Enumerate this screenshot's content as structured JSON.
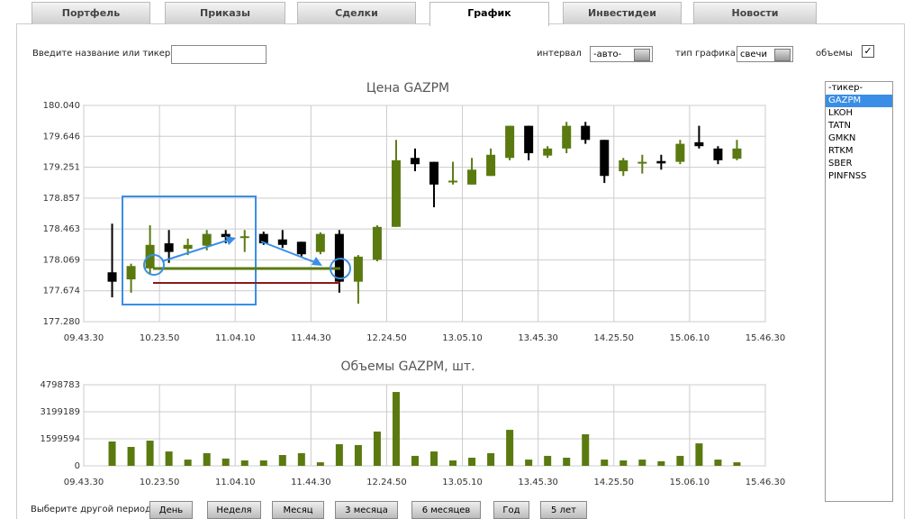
{
  "tabs": [
    "Портфель",
    "Приказы",
    "Сделки",
    "График",
    "Инвестидеи",
    "Новости"
  ],
  "active_tab": 3,
  "search": {
    "label": "Введите название или тикер"
  },
  "interval": {
    "label": "интервал",
    "value": "-авто-"
  },
  "chart_type": {
    "label": "тип графика",
    "value": "свечи"
  },
  "volumes": {
    "label": "объемы",
    "checked": true
  },
  "ticker_list": {
    "items": [
      "-тикер-",
      "GAZPM",
      "LKOH",
      "TATN",
      "GMKN",
      "RTKM",
      "SBER",
      "PINFNSS"
    ],
    "selected": 1
  },
  "price_chart": {
    "type": "candlestick",
    "title": "Цена GAZPM",
    "up_color": "#5a7a10",
    "down_color": "#000000",
    "xticks": [
      "09.43.30",
      "10.23.50",
      "11.04.10",
      "11.44.30",
      "12.24.50",
      "13.05.10",
      "13.45.30",
      "14.25.50",
      "15.06.10",
      "15.46.30"
    ],
    "ylim": [
      177.28,
      180.04
    ],
    "yticks": [
      {
        "value": 180.04,
        "label": "180.040"
      },
      179.646,
      179.251,
      178.857,
      178.463,
      178.069,
      177.674,
      {
        "value": 177.28,
        "label": "177.280"
      }
    ],
    "grid": true,
    "open": [
      177.91,
      177.82,
      177.96,
      178.28,
      178.21,
      178.25,
      178.4,
      178.36,
      178.4,
      178.33,
      178.3,
      178.17,
      178.4,
      177.79,
      178.07,
      178.49,
      179.37,
      179.32,
      179.06,
      179.03,
      179.14,
      179.37,
      179.78,
      179.4,
      179.49,
      179.78,
      179.6,
      179.2,
      179.31,
      179.33,
      179.32,
      179.57,
      179.49,
      179.36
    ],
    "high": [
      178.53,
      178.02,
      178.51,
      178.45,
      178.34,
      178.45,
      178.45,
      178.45,
      178.43,
      178.45,
      178.3,
      178.42,
      178.45,
      178.13,
      178.51,
      179.6,
      179.49,
      179.32,
      179.32,
      179.37,
      179.49,
      179.78,
      179.78,
      179.52,
      179.83,
      179.83,
      179.6,
      179.37,
      179.41,
      179.41,
      179.6,
      179.78,
      179.52,
      179.6
    ],
    "low": [
      177.59,
      177.65,
      177.88,
      178.03,
      178.13,
      178.19,
      178.28,
      178.17,
      178.26,
      178.22,
      178.11,
      178.14,
      177.65,
      177.51,
      178.05,
      178.49,
      179.2,
      178.74,
      179.03,
      179.03,
      179.14,
      179.34,
      179.34,
      179.37,
      179.43,
      179.55,
      179.05,
      179.14,
      179.17,
      179.22,
      179.29,
      179.49,
      179.29,
      179.34
    ],
    "close": [
      177.79,
      177.99,
      178.26,
      178.17,
      178.26,
      178.4,
      178.36,
      178.37,
      178.28,
      178.26,
      178.14,
      178.4,
      177.79,
      178.11,
      178.49,
      179.34,
      179.29,
      179.03,
      179.08,
      179.22,
      179.41,
      179.78,
      179.43,
      179.49,
      179.78,
      179.6,
      179.14,
      179.34,
      179.32,
      179.3,
      179.55,
      179.52,
      179.34,
      179.49
    ]
  },
  "volume_chart": {
    "type": "bar",
    "title": "Объемы GAZPM, шт.",
    "color": "#5a7a10",
    "xticks": [
      "09.43.30",
      "10.23.50",
      "11.04.10",
      "11.44.30",
      "12.24.50",
      "13.05.10",
      "13.45.30",
      "14.25.50",
      "15.06.10",
      "15.46.30"
    ],
    "ylim": [
      0,
      4798783
    ],
    "yticks": [
      0,
      1599594,
      3199189,
      4798783
    ],
    "grid": true,
    "values": [
      1440000,
      1120000,
      1490000,
      850000,
      370000,
      750000,
      430000,
      320000,
      320000,
      640000,
      750000,
      210000,
      1280000,
      1230000,
      2030000,
      4370000,
      590000,
      850000,
      320000,
      480000,
      750000,
      2130000,
      370000,
      590000,
      480000,
      1870000,
      370000,
      320000,
      370000,
      270000,
      590000,
      1330000,
      370000,
      210000
    ]
  },
  "period": {
    "label": "Выберите другой период:",
    "buttons": [
      "День",
      "Неделя",
      "Месяц",
      "3 месяца",
      "6 месяцев",
      "Год",
      "5 лет"
    ]
  }
}
